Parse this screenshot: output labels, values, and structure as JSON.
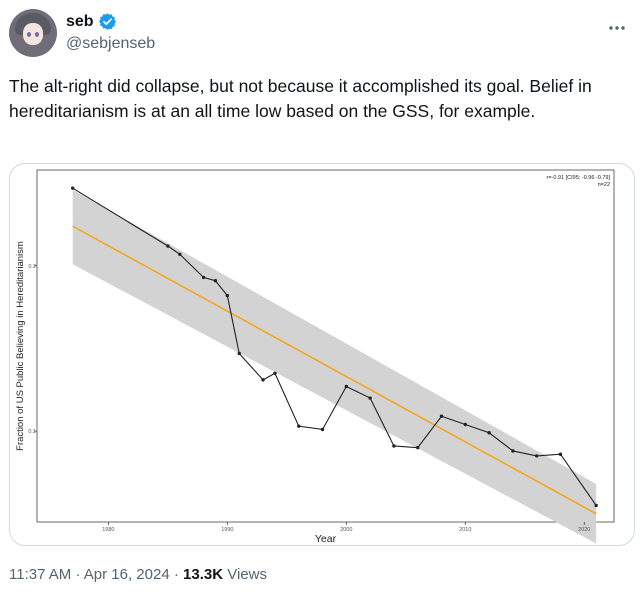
{
  "author": {
    "name": "seb",
    "handle": "@sebjenseb",
    "verified_color": "#1d9bf0"
  },
  "tweet": {
    "text": "The alt-right did collapse, but not because it accomplished its goal. Belief in hereditarianism is at an all time low based on the GSS, for example."
  },
  "meta": {
    "time": "11:37 AM",
    "separator1": "·",
    "date": "Apr 16, 2024",
    "separator2": "·",
    "views_count": "13.3K",
    "views_label": "Views"
  },
  "icons": {
    "more": "more-horizontal-icon",
    "verified": "verified-badge-icon"
  },
  "chart_data": {
    "type": "line",
    "xlabel": "Year",
    "ylabel": "Fraction of US Public Believing in Hereditarianism",
    "xlim": [
      1974,
      2022.5
    ],
    "ylim": [
      0.045,
      0.258
    ],
    "xticks": [
      1980,
      1990,
      2000,
      2010,
      2020
    ],
    "yticks": [
      0.1,
      0.2
    ],
    "ytick_labels": [
      "0.1",
      "0.2"
    ],
    "annotation": [
      "r=-0.91 [CI95: -0.96 -0.79]",
      "n=22"
    ],
    "line_color": "#222222",
    "fit_color": "#f5a623",
    "band_color": "#d3d3d3",
    "series": [
      {
        "x": [
          1977,
          1985,
          1986,
          1988,
          1989,
          1990,
          1991,
          1993,
          1994,
          1996,
          1998,
          2000,
          2002,
          2004,
          2006,
          2008,
          2010,
          2012,
          2014,
          2016,
          2018,
          2021
        ],
        "y": [
          0.247,
          0.212,
          0.207,
          0.193,
          0.191,
          0.182,
          0.147,
          0.131,
          0.135,
          0.103,
          0.101,
          0.127,
          0.12,
          0.091,
          0.09,
          0.109,
          0.104,
          0.099,
          0.088,
          0.085,
          0.086,
          0.055
        ]
      }
    ],
    "fit": {
      "x": [
        1977,
        2021
      ],
      "y": [
        0.224,
        0.05
      ]
    },
    "band": {
      "x": [
        1977,
        2021
      ],
      "upper": [
        0.246,
        0.068
      ],
      "lower": [
        0.201,
        0.032
      ]
    }
  }
}
